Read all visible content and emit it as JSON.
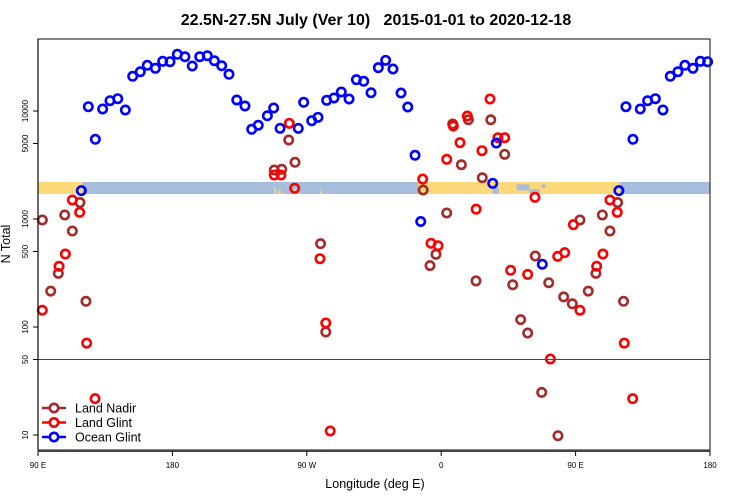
{
  "chart_data": {
    "type": "scatter",
    "title": "22.5N-27.5N July (Ver 10)   2015-01-01 to 2020-12-18",
    "xlabel": "Longitude (deg E)",
    "ylabel": "N Total",
    "y_scale": "log",
    "ylim": [
      7,
      50000
    ],
    "x_axis": "longitude 90E eastward through 180, 90W, 0, 90E to 180 (90E-180 segment shown twice)",
    "x_ticks": [
      {
        "lon": 90,
        "label": "90 E"
      },
      {
        "lon": 180,
        "label": "180"
      },
      {
        "lon": -90,
        "label": "90 W"
      },
      {
        "lon": 0,
        "label": "0"
      },
      {
        "lon": 90,
        "label": "90 E",
        "repeat": true
      },
      {
        "lon": 180,
        "label": "180",
        "repeat": true
      }
    ],
    "y_ticks": [
      {
        "value": 10,
        "label": "10"
      },
      {
        "value": 50,
        "label": "50"
      },
      {
        "value": 100,
        "label": "100"
      },
      {
        "value": 500,
        "label": "500"
      },
      {
        "value": 1000,
        "label": "1000"
      },
      {
        "value": 5000,
        "label": "5000"
      },
      {
        "value": 10000,
        "label": "10000"
      }
    ],
    "reference_line": 50,
    "land_ocean_strip_colors": {
      "land": "#fdd97a",
      "ocean": "#a6bddb"
    },
    "legend_position": "bottom-left",
    "series": [
      {
        "name": "Land Nadir",
        "color": "#a52a2a",
        "points": [
          [
            92.9,
            980
          ],
          [
            98.5,
            215
          ],
          [
            103.6,
            314
          ],
          [
            107.9,
            1090
          ],
          [
            113.0,
            774
          ],
          [
            118.1,
            1420
          ],
          [
            122.1,
            173
          ],
          [
            -111.8,
            2840
          ],
          [
            -106.8,
            2885
          ],
          [
            -102.1,
            5390
          ],
          [
            -97.9,
            3350
          ],
          [
            -80.8,
            591
          ],
          [
            -77.3,
            90
          ],
          [
            -12.1,
            1856
          ],
          [
            -7.5,
            370
          ],
          [
            -3.5,
            471
          ],
          [
            3.7,
            1137
          ],
          [
            7.7,
            7580
          ],
          [
            13.5,
            3180
          ],
          [
            18.2,
            8300
          ],
          [
            23.3,
            267
          ],
          [
            27.5,
            2410
          ],
          [
            33.2,
            8300
          ],
          [
            42.5,
            3970
          ],
          [
            47.9,
            246
          ],
          [
            53.2,
            117
          ],
          [
            57.9,
            88
          ],
          [
            63.0,
            454
          ],
          [
            67.3,
            24.8
          ],
          [
            72.0,
            257
          ],
          [
            78.2,
            9.85
          ],
          [
            82.0,
            190
          ],
          [
            87.8,
            164
          ]
        ]
      },
      {
        "name": "Land Glint",
        "color": "#ff0000",
        "points": [
          [
            92.9,
            143
          ],
          [
            104.1,
            365
          ],
          [
            108.3,
            474
          ],
          [
            113.0,
            1500
          ],
          [
            117.9,
            1153
          ],
          [
            122.6,
            71
          ],
          [
            128.2,
            21.7
          ],
          [
            -111.8,
            2555
          ],
          [
            -107.3,
            2555
          ],
          [
            -101.7,
            7690
          ],
          [
            -98.1,
            1924
          ],
          [
            -81.2,
            429
          ],
          [
            -77.3,
            109
          ],
          [
            -74.3,
            10.9
          ],
          [
            -12.4,
            2345
          ],
          [
            -6.8,
            596
          ],
          [
            -2.1,
            566
          ],
          [
            3.7,
            3570
          ],
          [
            8.1,
            7260
          ],
          [
            12.6,
            5090
          ],
          [
            17.5,
            8990
          ],
          [
            23.4,
            1233
          ],
          [
            27.3,
            4290
          ],
          [
            32.7,
            12920
          ],
          [
            38.0,
            5660
          ],
          [
            42.5,
            5660
          ],
          [
            46.5,
            335
          ],
          [
            57.9,
            307
          ],
          [
            62.8,
            1588
          ],
          [
            73.1,
            50.6
          ],
          [
            78.0,
            451
          ],
          [
            82.7,
            488
          ],
          [
            88.5,
            886
          ]
        ]
      },
      {
        "name": "Ocean Glint",
        "color": "#0000ff",
        "points": [
          [
            119.0,
            1830
          ],
          [
            123.7,
            10960
          ],
          [
            128.4,
            5470
          ],
          [
            133.3,
            10440
          ],
          [
            138.2,
            12450
          ],
          [
            143.4,
            13000
          ],
          [
            148.5,
            10220
          ],
          [
            153.4,
            20960
          ],
          [
            158.5,
            23100
          ],
          [
            163.2,
            26500
          ],
          [
            168.6,
            24850
          ],
          [
            173.5,
            28850
          ],
          [
            178.4,
            28600
          ],
          [
            -176.7,
            33500
          ],
          [
            -171.6,
            31800
          ],
          [
            -166.7,
            26100
          ],
          [
            -161.7,
            31800
          ],
          [
            -156.6,
            32500
          ],
          [
            -151.9,
            29200
          ],
          [
            -147.0,
            26250
          ],
          [
            -142.1,
            21870
          ],
          [
            -136.9,
            12650
          ],
          [
            -131.4,
            11130
          ],
          [
            -126.9,
            6770
          ],
          [
            -122.5,
            7380
          ],
          [
            -116.4,
            9040
          ],
          [
            -112.2,
            10660
          ],
          [
            -107.9,
            6910
          ],
          [
            -95.7,
            6910
          ],
          [
            -92.1,
            12040
          ],
          [
            -86.7,
            8130
          ],
          [
            -82.5,
            8740
          ],
          [
            -76.7,
            12560
          ],
          [
            -71.8,
            13200
          ],
          [
            -66.9,
            15000
          ],
          [
            -61.7,
            12920
          ],
          [
            -56.8,
            19500
          ],
          [
            -51.9,
            18840
          ],
          [
            -47.0,
            14760
          ],
          [
            -42.1,
            25180
          ],
          [
            -37.2,
            29460
          ],
          [
            -32.3,
            24490
          ],
          [
            -26.9,
            14680
          ],
          [
            -22.4,
            10890
          ],
          [
            -17.5,
            3890
          ],
          [
            -13.7,
            948
          ],
          [
            34.5,
            2140
          ],
          [
            36.9,
            5050
          ],
          [
            67.7,
            381
          ]
        ]
      }
    ]
  }
}
